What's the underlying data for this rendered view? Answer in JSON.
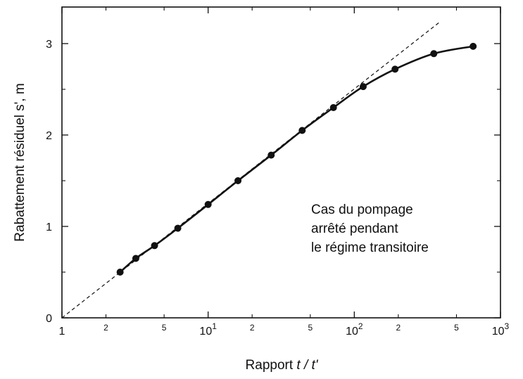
{
  "chart_data": {
    "type": "scatter",
    "x_scale": "log",
    "xlim": [
      1,
      1000
    ],
    "ylim": [
      0,
      3.4
    ],
    "xlabel_prefix": "Rapport ",
    "xlabel_var": "t / t'",
    "ylabel": "Rabattement résiduel s', m",
    "major_x_ticks": [
      {
        "x": 1,
        "base": "1",
        "exp": ""
      },
      {
        "x": 10,
        "base": "10",
        "exp": "1"
      },
      {
        "x": 100,
        "base": "10",
        "exp": "2"
      },
      {
        "x": 1000,
        "base": "10",
        "exp": "3"
      }
    ],
    "minor_x_ticks": [
      {
        "x": 2,
        "label": "2"
      },
      {
        "x": 5,
        "label": "5"
      },
      {
        "x": 20,
        "label": "2"
      },
      {
        "x": 50,
        "label": "5"
      },
      {
        "x": 200,
        "label": "2"
      },
      {
        "x": 500,
        "label": "5"
      }
    ],
    "y_ticks": [
      {
        "y": 0,
        "label": "0"
      },
      {
        "y": 1,
        "label": "1"
      },
      {
        "y": 2,
        "label": "2"
      },
      {
        "y": 3,
        "label": "3"
      }
    ],
    "series": [
      {
        "points": [
          {
            "x": 2.5,
            "y": 0.5
          },
          {
            "x": 3.2,
            "y": 0.65
          },
          {
            "x": 4.3,
            "y": 0.79
          },
          {
            "x": 6.2,
            "y": 0.98
          },
          {
            "x": 10,
            "y": 1.24
          },
          {
            "x": 16,
            "y": 1.5
          },
          {
            "x": 27,
            "y": 1.78
          },
          {
            "x": 44,
            "y": 2.05
          },
          {
            "x": 72,
            "y": 2.3
          },
          {
            "x": 115,
            "y": 2.53
          },
          {
            "x": 190,
            "y": 2.72
          },
          {
            "x": 350,
            "y": 2.89
          },
          {
            "x": 650,
            "y": 2.97
          }
        ]
      }
    ],
    "extrapolation": {
      "x": [
        1,
        380
      ],
      "y": [
        0,
        3.23
      ]
    },
    "annotation": [
      "Cas du pompage",
      "arrêté pendant",
      "le régime transitoire"
    ]
  }
}
